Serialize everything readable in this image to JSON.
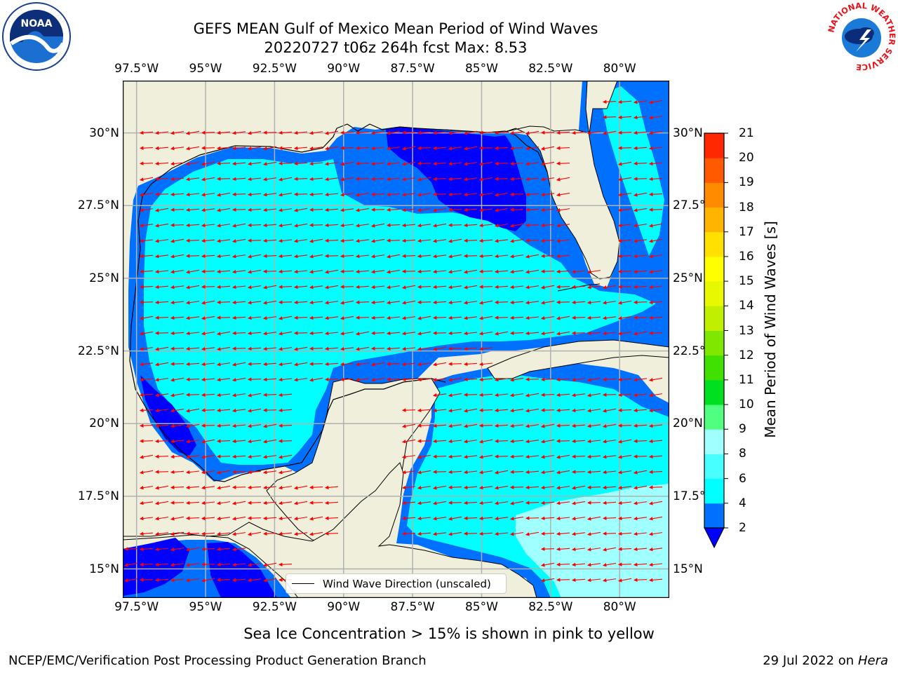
{
  "title": {
    "line1": "GEFS MEAN Gulf of Mexico Mean Period of Wind Waves",
    "line2": "20220727 t06z 264h fcst   Max: 8.53"
  },
  "map": {
    "lon_ticks": [
      "97.5°W",
      "95°W",
      "92.5°W",
      "90°W",
      "87.5°W",
      "85°W",
      "82.5°W",
      "80°W"
    ],
    "lat_ticks": [
      "30°N",
      "27.5°N",
      "25°N",
      "22.5°N",
      "20°N",
      "17.5°N",
      "15°N"
    ],
    "lon_range": [
      -98,
      -78.2
    ],
    "lat_range": [
      14,
      31.8
    ],
    "land_color": "#efefdc",
    "arrow_color": "#ff0000",
    "vector_direction": "mostly westward (toward west), winds from the east",
    "legend": "Wind Wave Direction (unscaled)"
  },
  "colorbar": {
    "title": "Mean Period of Wind Waves [s]",
    "levels": [
      "2",
      "4",
      "6",
      "8",
      "9",
      "10",
      "11",
      "12",
      "13",
      "14",
      "15",
      "16",
      "17",
      "18",
      "19",
      "20",
      "21"
    ],
    "colors": [
      "#0070ff",
      "#00ffff",
      "#48ffff",
      "#a0ffff",
      "#50ff80",
      "#00e020",
      "#40e000",
      "#80e800",
      "#c0f000",
      "#e8f800",
      "#ffff00",
      "#ffe000",
      "#ffb400",
      "#ff8c00",
      "#ff5a00",
      "#ff2800"
    ],
    "under_color": "#0000ff"
  },
  "caption": "Sea Ice Concentration > 15% is shown in pink to yellow",
  "footer": {
    "left": "NCEP/EMC/Verification Post Processing Product Generation Branch",
    "right_date": "29 Jul 2022 on ",
    "right_host": "Hera"
  },
  "logos": {
    "noaa_text": "NOAA",
    "nws_ring": "NATIONAL WEATHER SERVICE"
  }
}
